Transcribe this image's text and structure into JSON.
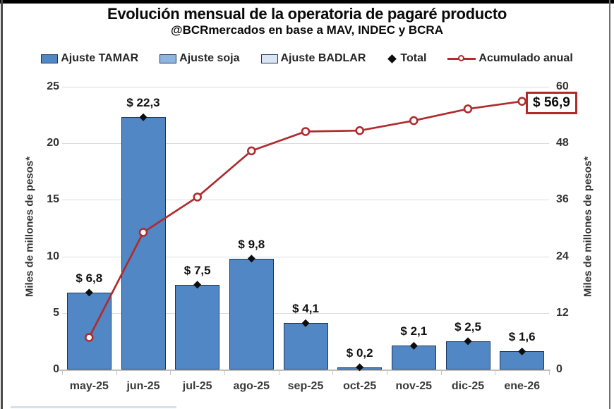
{
  "title": "Evolución mensual de la operatoria de pagaré producto",
  "subtitle": "@BCRmercados en base a MAV, INDEC y BCRA",
  "colors": {
    "bar_fill": "#5287C5",
    "bar_border": "#17375E",
    "soja_fill": "#8EB4DF",
    "badlar_fill": "#D9E5F3",
    "line_red": "#AF2B2E",
    "total_marker": "#0d0d0d",
    "callout_border": "#B02B2B",
    "gridline": "#dcdcdc"
  },
  "legend": [
    {
      "marker": "swatch",
      "label": "Ajuste TAMAR",
      "fill": "#5287C5"
    },
    {
      "marker": "swatch",
      "label": "Ajuste soja",
      "fill": "#8EB4DF"
    },
    {
      "marker": "swatch",
      "label": "Ajuste BADLAR",
      "fill": "#D9E5F3"
    },
    {
      "marker": "diamond",
      "label": "Total",
      "fill": "#0d0d0d"
    },
    {
      "marker": "line",
      "label": "Acumulado anual",
      "fill": "#AF2B2E"
    }
  ],
  "chart_data": {
    "type": "bar",
    "categories": [
      "may-25",
      "jun-25",
      "jul-25",
      "ago-25",
      "sep-25",
      "oct-25",
      "nov-25",
      "dic-25",
      "ene-26"
    ],
    "series": [
      {
        "name": "Ajuste TAMAR",
        "type": "bar",
        "axis": "left",
        "values": [
          6.8,
          22.3,
          7.5,
          9.8,
          4.1,
          0.2,
          2.1,
          2.5,
          1.6
        ]
      },
      {
        "name": "Total",
        "type": "scatter",
        "marker": "diamond",
        "axis": "left",
        "values": [
          6.8,
          22.3,
          7.5,
          9.8,
          4.1,
          0.2,
          2.1,
          2.5,
          1.6
        ]
      },
      {
        "name": "Acumulado anual",
        "type": "line",
        "marker": "circle",
        "axis": "right",
        "values": [
          6.8,
          29.1,
          36.6,
          46.4,
          50.5,
          50.7,
          52.8,
          55.3,
          56.9
        ]
      }
    ],
    "bar_labels": [
      "$ 6,8",
      "$ 22,3",
      "$ 7,5",
      "$ 9,8",
      "$ 4,1",
      "$ 0,2",
      "$ 2,1",
      "$ 2,5",
      "$ 1,6"
    ],
    "callout_label": "$ 56,9",
    "left_axis": {
      "label": "Miles de millones de pesos*",
      "ticks": [
        0,
        5,
        10,
        15,
        20,
        25
      ],
      "range": [
        0,
        25
      ]
    },
    "right_axis": {
      "label": "Miles de millones de pesos*",
      "ticks": [
        0,
        12,
        24,
        36,
        48,
        60
      ],
      "range": [
        0,
        60
      ]
    },
    "grid": true,
    "legend_position": "top"
  }
}
